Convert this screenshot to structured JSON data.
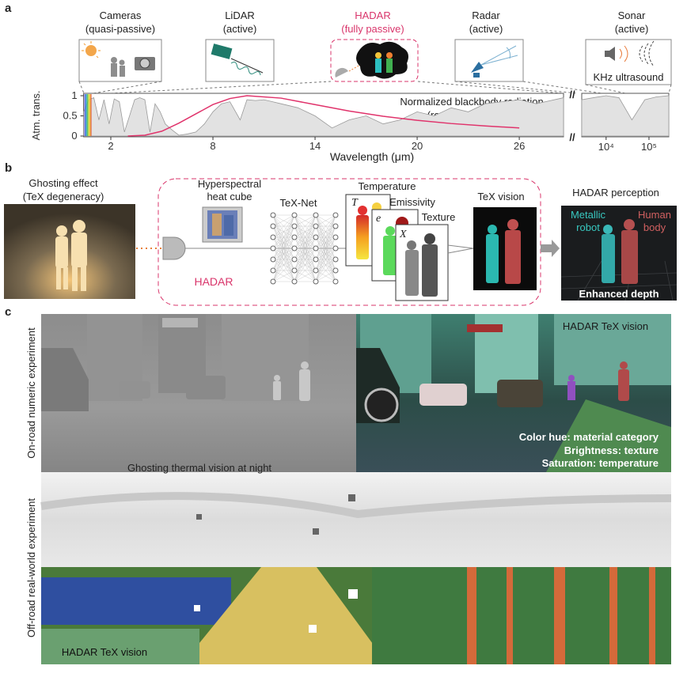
{
  "panel_a": {
    "label": "a",
    "sensors": [
      {
        "name": "Cameras",
        "mode": "(quasi-passive)"
      },
      {
        "name": "LiDAR",
        "mode": "(active)"
      },
      {
        "name": "HADAR",
        "mode": "(fully passive)"
      },
      {
        "name": "Radar",
        "mode": "(active)"
      },
      {
        "name": "Sonar",
        "mode": "(active)",
        "caption": "KHz ultrasound"
      }
    ],
    "plot": {
      "type": "line",
      "ylabel": "Atm. trans.",
      "xlabel": "Wavelength (μm)",
      "annotation": [
        "Normalized blackbody radiation",
        "(room-temperature)"
      ],
      "axis_break": "//",
      "xlim": [
        0.4,
        28.6
      ],
      "ylim": [
        0,
        1
      ],
      "xticks": [
        2,
        8,
        14,
        20,
        26
      ],
      "yticks": [
        1,
        0.5,
        0
      ],
      "far_xlim": [
        2700,
        290000
      ],
      "far_xscale": "log",
      "far_xticks": [
        {
          "value": 10000,
          "label": "10⁴"
        },
        {
          "value": 100000,
          "label": "10⁵"
        }
      ],
      "transmission": {
        "color": "#9a9a9a",
        "x": [
          0.4,
          0.7,
          1,
          1.3,
          1.6,
          1.9,
          2.2,
          2.5,
          2.8,
          3.1,
          3.4,
          3.7,
          4,
          4.3,
          4.6,
          4.9,
          5.2,
          5.6,
          6,
          6.5,
          7,
          7.5,
          8,
          8.5,
          9,
          9.6,
          10,
          10.5,
          11,
          11.5,
          12,
          13,
          14,
          15,
          16,
          17,
          18,
          19,
          20,
          21,
          22,
          23,
          24,
          25,
          26,
          27,
          28.6
        ],
        "values": [
          0.6,
          0.9,
          0.95,
          0.4,
          0.9,
          0.3,
          0.92,
          0.85,
          0.1,
          0.5,
          0.9,
          0.95,
          0.9,
          0.1,
          0.8,
          0.6,
          0.3,
          0.15,
          0.02,
          0.05,
          0.1,
          0.3,
          0.6,
          0.8,
          0.85,
          0.4,
          0.9,
          0.88,
          0.9,
          0.85,
          0.8,
          0.7,
          0.5,
          0.2,
          0.4,
          0.5,
          0.3,
          0.4,
          0.6,
          0.5,
          0.7,
          0.6,
          0.8,
          0.85,
          0.9,
          0.8,
          0.95
        ]
      },
      "far_transmission": {
        "x": [
          2700,
          5000,
          10000,
          20000,
          40000,
          80000,
          150000,
          290000
        ],
        "values": [
          0.9,
          0.95,
          1,
          0.95,
          0.4,
          0.9,
          0.97,
          1
        ]
      },
      "blackbody": {
        "color": "#e0336b",
        "x": [
          3,
          4,
          5,
          6,
          7,
          8,
          9,
          10,
          12,
          14,
          16,
          18,
          20,
          22,
          24,
          26
        ],
        "values": [
          0,
          0.02,
          0.12,
          0.32,
          0.55,
          0.78,
          0.93,
          1.0,
          0.94,
          0.78,
          0.62,
          0.49,
          0.39,
          0.31,
          0.25,
          0.2
        ]
      }
    }
  },
  "panel_b": {
    "label": "b",
    "ghosting": [
      "Ghosting effect",
      "(TeX degeneracy)"
    ],
    "cube": [
      "Hyperspectral",
      "heat cube"
    ],
    "network": "TeX-Net",
    "maps": [
      {
        "title": "Temperature",
        "symbol": "T"
      },
      {
        "title": "Emissivity",
        "symbol": "e"
      },
      {
        "title": "Texture",
        "symbol": "X"
      }
    ],
    "vision": "TeX vision",
    "box_label": "HADAR",
    "perception": {
      "title": "HADAR perception",
      "robot": [
        "Metallic",
        "robot"
      ],
      "human": [
        "Human",
        "body"
      ],
      "depth": "Enhanced depth"
    }
  },
  "panel_c": {
    "label": "c",
    "rows": [
      {
        "side_label": "On-road numeric experiment",
        "left_caption": "Ghosting thermal vision at night",
        "right_caption": "HADAR TeX vision",
        "legend": [
          "Color hue: material category",
          "Brightness: texture",
          "Saturation: temperature"
        ]
      },
      {
        "side_label": "Off-road real-world experiment",
        "caption": "HADAR TeX vision"
      }
    ]
  }
}
